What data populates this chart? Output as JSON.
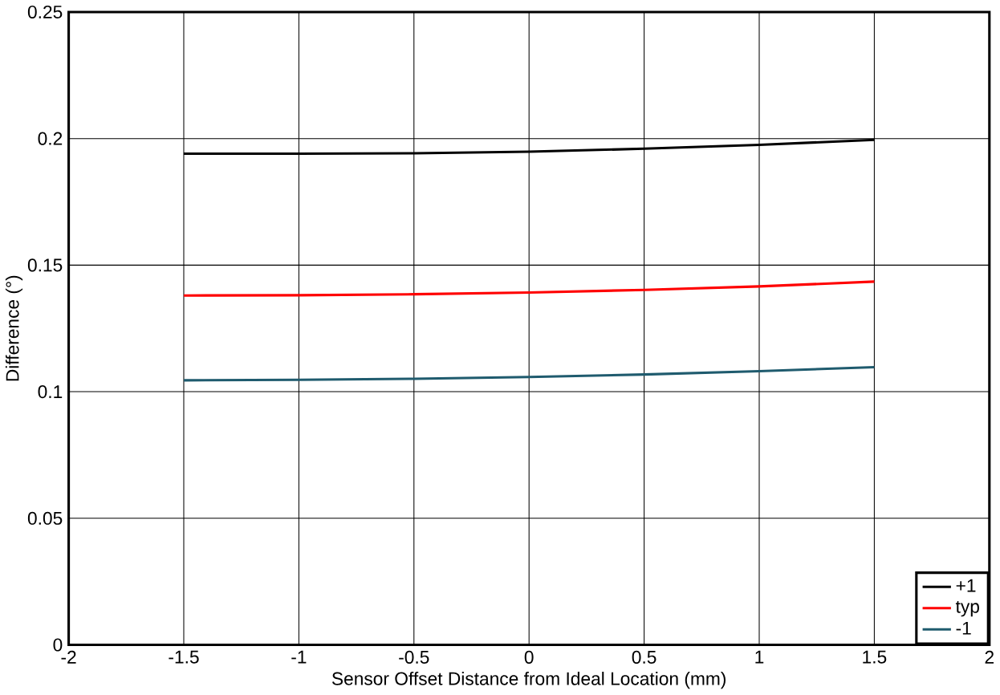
{
  "chart_data": {
    "type": "line",
    "xlabel": "Sensor Offset Distance from Ideal Location (mm)",
    "ylabel": "Difference (°)",
    "x": [
      -1.5,
      -1,
      -0.5,
      0,
      0.5,
      1,
      1.5
    ],
    "series": [
      {
        "name": "+1",
        "color": "#000000",
        "values": [
          0.194,
          0.194,
          0.1942,
          0.1948,
          0.196,
          0.1975,
          0.1995
        ]
      },
      {
        "name": "typ",
        "color": "#ff0000",
        "values": [
          0.138,
          0.1381,
          0.1385,
          0.1392,
          0.1402,
          0.1416,
          0.1435
        ]
      },
      {
        "name": "-1",
        "color": "#1f5b6e",
        "values": [
          0.1045,
          0.1047,
          0.1051,
          0.1058,
          0.1068,
          0.1081,
          0.1097
        ]
      }
    ],
    "xlim": [
      -2,
      2
    ],
    "ylim": [
      0,
      0.25
    ],
    "xticks": [
      -2,
      -1.5,
      -1,
      -0.5,
      0,
      0.5,
      1,
      1.5,
      2
    ],
    "yticks": [
      0,
      0.05,
      0.1,
      0.15,
      0.2,
      0.25
    ],
    "grid": true,
    "legend": "bottom right",
    "marker": "none",
    "line_style": "solid"
  }
}
